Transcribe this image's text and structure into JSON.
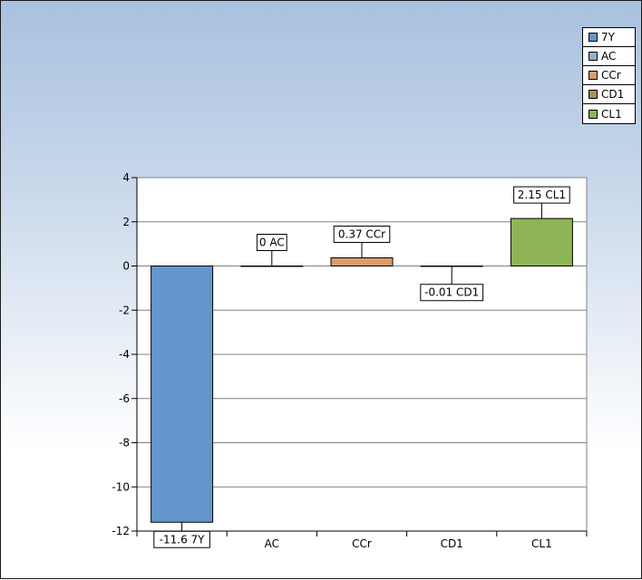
{
  "chart_data": {
    "type": "bar",
    "title": "",
    "xlabel": "",
    "ylabel": "",
    "categories": [
      "7Y",
      "AC",
      "CCr",
      "CD1",
      "CL1"
    ],
    "values": [
      -11.6,
      0,
      0.37,
      -0.01,
      2.15
    ],
    "data_labels": [
      "-11.6 7Y",
      "0 AC",
      "0.37 CCr",
      "-0.01 CD1",
      "2.15 CL1"
    ],
    "colors": [
      "#6496cc",
      "#8fb2cb",
      "#d99c6c",
      "#a8925a",
      "#8db455"
    ],
    "ylim": [
      -12,
      4
    ],
    "yticks": [
      4,
      2,
      0,
      -2,
      -4,
      -6,
      -8,
      -10,
      -12
    ],
    "grid": true,
    "legend": {
      "position": "top-right",
      "entries": [
        "7Y",
        "AC",
        "CCr",
        "CD1",
        "CL1"
      ]
    }
  }
}
